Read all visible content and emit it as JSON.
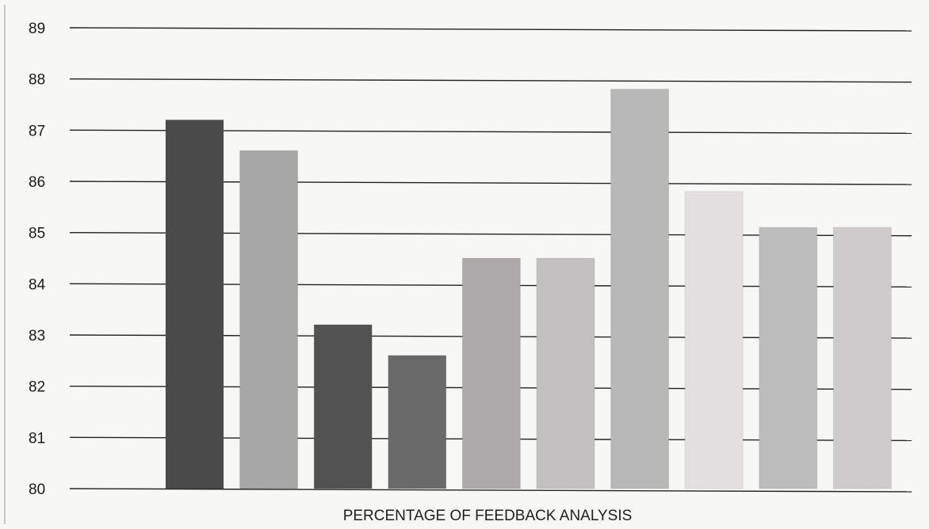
{
  "chart_data": {
    "type": "bar",
    "categories": [
      "",
      "",
      "",
      "",
      "",
      "",
      "",
      "",
      "",
      ""
    ],
    "values": [
      87.2,
      86.6,
      83.2,
      82.6,
      84.5,
      84.5,
      87.8,
      85.8,
      85.1,
      85.1
    ],
    "bar_colors": [
      "#4a4a4a",
      "#a7a7a7",
      "#525252",
      "#6a6a6a",
      "#ada8aa",
      "#c4c0c1",
      "#b8b8b8",
      "#e4dfe0",
      "#bcbcbc",
      "#cfcacb"
    ],
    "title": "",
    "xlabel": "PERCENTAGE OF FEEDBACK ANALYSIS",
    "ylabel": "",
    "ylim": [
      80,
      89
    ],
    "yticks": [
      "80",
      "81",
      "82",
      "83",
      "84",
      "85",
      "86",
      "87",
      "88",
      "89"
    ],
    "grid": true,
    "legend": "none"
  }
}
